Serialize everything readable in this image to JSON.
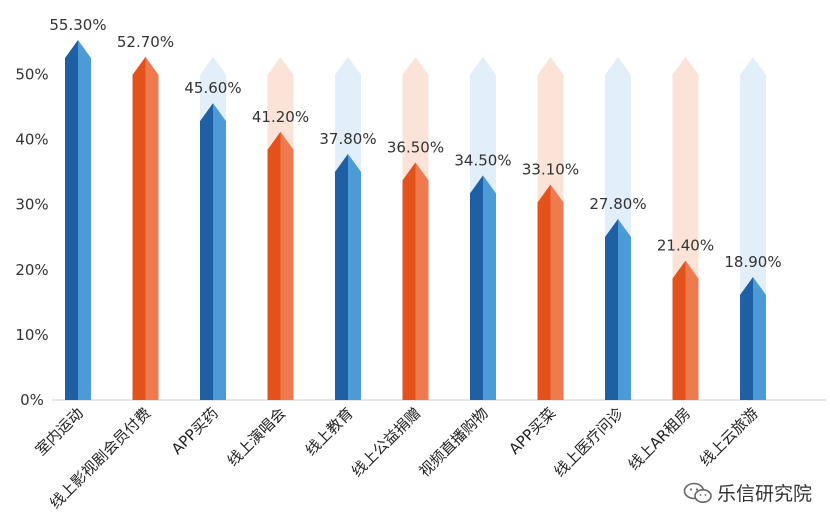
{
  "chart_data": {
    "type": "bar",
    "categories": [
      "室内运动",
      "线上影视剧会员付费",
      "APP买药",
      "线上演唱会",
      "线上教育",
      "线上公益捐赠",
      "视频直播购物",
      "APP买菜",
      "线上医疗问诊",
      "线上AR租房",
      "线上云旅游"
    ],
    "values": [
      55.3,
      52.7,
      45.6,
      41.2,
      37.8,
      36.5,
      34.5,
      33.1,
      27.8,
      21.4,
      18.9
    ],
    "data_labels": [
      "55.30%",
      "52.70%",
      "45.60%",
      "41.20%",
      "37.80%",
      "36.50%",
      "34.50%",
      "33.10%",
      "27.80%",
      "21.40%",
      "18.90%"
    ],
    "bar_colors": [
      "blue",
      "orange",
      "blue",
      "orange",
      "blue",
      "orange",
      "blue",
      "orange",
      "blue",
      "orange",
      "blue"
    ],
    "yticks": [
      "0%",
      "10%",
      "20%",
      "30%",
      "40%",
      "50%"
    ],
    "ylim": [
      0,
      55.3
    ],
    "background_max": 52.7,
    "title": "",
    "xlabel": "",
    "ylabel": "",
    "grid": false,
    "legend": "none"
  },
  "colors": {
    "blue_dark": "#1F5FA3",
    "blue_light": "#4D9BD6",
    "orange_dark": "#E4521C",
    "orange_light": "#F07A50",
    "ghost_blue": "#E2EFFA",
    "ghost_orange": "#FCE3D8"
  },
  "watermark": {
    "text": "乐信研究院",
    "icon": "wechat-icon"
  }
}
